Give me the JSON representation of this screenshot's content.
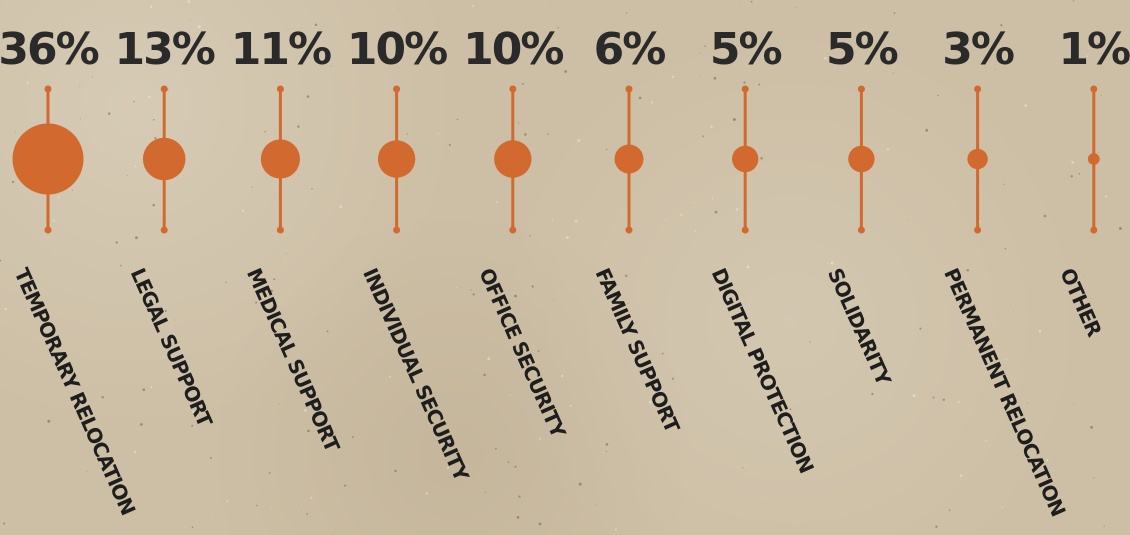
{
  "chart_data": {
    "type": "bubble-lollipop",
    "categories": [
      "TEMPORARY RELOCATION",
      "LEGAL SUPPORT",
      "MEDICAL SUPPORT",
      "INDIVIDUAL SECURITY",
      "OFFICE SECURITY",
      "FAMILY SUPPORT",
      "DIGITAL PROTECTION",
      "SOLIDARITY",
      "PERMANENT RELOCATION",
      "OTHER"
    ],
    "values": [
      36,
      13,
      11,
      10,
      10,
      6,
      5,
      5,
      3,
      1
    ],
    "value_labels": [
      "36%",
      "13%",
      "11%",
      "10%",
      "10%",
      "6%",
      "5%",
      "5%",
      "3%",
      "1%"
    ],
    "unit": "%",
    "color": "#d2692e"
  },
  "colors": {
    "accent": "#d2692e",
    "text": "#2a2a2a",
    "background": "#cdbfa5"
  }
}
